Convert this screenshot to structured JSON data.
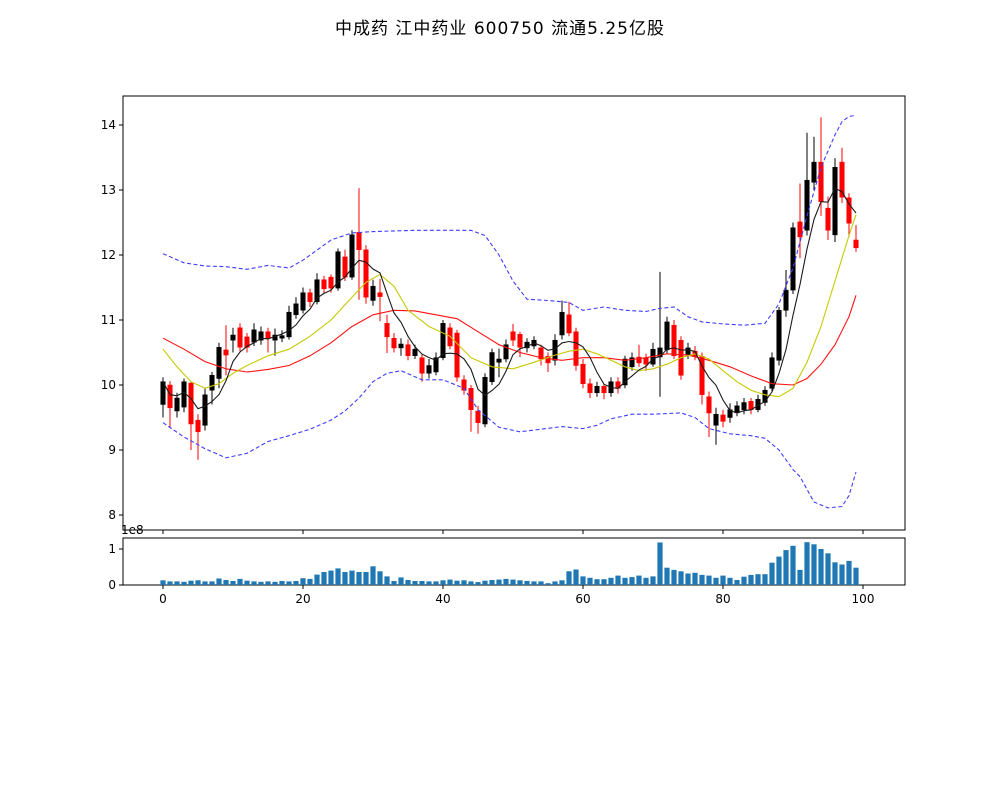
{
  "title": "中成药  江中药业  600750  流通5.25亿股",
  "chart_data": {
    "type": "candlestick",
    "title": "中成药  江中药业  600750  流通5.25亿股",
    "legend_position": "none",
    "grid": false,
    "x_axis": {
      "ticks": [
        0,
        20,
        40,
        60,
        80,
        100
      ]
    },
    "price_axis": {
      "ticks": [
        8,
        9,
        10,
        11,
        12,
        13,
        14
      ],
      "range": [
        7.77,
        14.45
      ]
    },
    "volume_axis": {
      "ticks": [
        0,
        1
      ],
      "range": [
        0,
        1.31
      ],
      "offset_label": "1e8"
    },
    "colors": {
      "up": "#000000",
      "down": "#ff0000",
      "ma_fast": "#1a1a1a",
      "ma_mid": "#c8c800",
      "ma_slow": "#ff1111",
      "band": "#3d3dff",
      "volume_bar": "#1f77b4",
      "axis": "#000000"
    },
    "ohlc": [
      [
        9.7,
        10.12,
        9.5,
        10.05
      ],
      [
        10.0,
        10.06,
        9.35,
        9.65
      ],
      [
        9.6,
        9.88,
        9.5,
        9.8
      ],
      [
        9.66,
        10.1,
        9.58,
        10.05
      ],
      [
        10.03,
        10.05,
        9.0,
        9.4
      ],
      [
        9.46,
        9.55,
        8.85,
        9.28
      ],
      [
        9.38,
        9.95,
        9.3,
        9.85
      ],
      [
        9.92,
        10.2,
        9.7,
        10.15
      ],
      [
        10.1,
        10.65,
        9.95,
        10.58
      ],
      [
        10.54,
        10.92,
        10.15,
        10.46
      ],
      [
        10.69,
        10.88,
        10.5,
        10.77
      ],
      [
        10.88,
        10.95,
        10.52,
        10.58
      ],
      [
        10.74,
        10.8,
        10.5,
        10.58
      ],
      [
        10.66,
        10.95,
        10.6,
        10.85
      ],
      [
        10.69,
        10.9,
        10.62,
        10.82
      ],
      [
        10.82,
        10.88,
        10.5,
        10.72
      ],
      [
        10.69,
        10.87,
        10.45,
        10.77
      ],
      [
        10.72,
        10.84,
        10.66,
        10.76
      ],
      [
        10.74,
        11.22,
        10.7,
        11.12
      ],
      [
        11.08,
        11.35,
        11.02,
        11.25
      ],
      [
        11.15,
        11.5,
        11.1,
        11.42
      ],
      [
        11.42,
        11.48,
        11.2,
        11.28
      ],
      [
        11.28,
        11.72,
        11.24,
        11.62
      ],
      [
        11.62,
        11.68,
        11.4,
        11.48
      ],
      [
        11.66,
        11.7,
        11.42,
        11.49
      ],
      [
        11.49,
        12.1,
        11.45,
        12.05
      ],
      [
        11.97,
        12.08,
        11.6,
        11.66
      ],
      [
        11.66,
        12.38,
        11.62,
        12.31
      ],
      [
        12.35,
        13.03,
        11.31,
        12.08
      ],
      [
        12.08,
        12.15,
        11.25,
        11.35
      ],
      [
        11.3,
        11.62,
        11.22,
        11.52
      ],
      [
        11.42,
        11.63,
        10.98,
        11.36
      ],
      [
        10.95,
        11.08,
        10.49,
        10.74
      ],
      [
        10.72,
        10.8,
        10.5,
        10.57
      ],
      [
        10.57,
        10.72,
        10.45,
        10.63
      ],
      [
        10.62,
        10.7,
        10.38,
        10.45
      ],
      [
        10.45,
        10.62,
        10.4,
        10.55
      ],
      [
        10.42,
        10.48,
        10.05,
        10.18
      ],
      [
        10.18,
        10.4,
        10.1,
        10.3
      ],
      [
        10.2,
        10.5,
        10.15,
        10.42
      ],
      [
        10.42,
        11.0,
        10.38,
        10.95
      ],
      [
        10.88,
        10.95,
        10.55,
        10.6
      ],
      [
        10.8,
        10.85,
        10.05,
        10.12
      ],
      [
        10.08,
        10.15,
        9.85,
        9.92
      ],
      [
        9.95,
        10.0,
        9.28,
        9.62
      ],
      [
        9.6,
        9.68,
        9.25,
        9.42
      ],
      [
        9.4,
        10.18,
        9.35,
        10.12
      ],
      [
        10.05,
        10.56,
        10.0,
        10.5
      ],
      [
        10.35,
        10.56,
        10.12,
        10.4
      ],
      [
        10.4,
        10.7,
        10.35,
        10.62
      ],
      [
        10.82,
        10.94,
        10.6,
        10.69
      ],
      [
        10.78,
        10.82,
        10.43,
        10.58
      ],
      [
        10.57,
        10.72,
        10.5,
        10.66
      ],
      [
        10.6,
        10.75,
        10.55,
        10.69
      ],
      [
        10.57,
        10.62,
        10.3,
        10.4
      ],
      [
        10.44,
        10.5,
        10.2,
        10.34
      ],
      [
        10.38,
        10.78,
        10.3,
        10.69
      ],
      [
        10.77,
        11.3,
        10.7,
        11.12
      ],
      [
        11.08,
        11.28,
        10.75,
        10.8
      ],
      [
        10.82,
        10.88,
        10.22,
        10.3
      ],
      [
        10.32,
        10.4,
        9.95,
        10.02
      ],
      [
        10.02,
        10.1,
        9.8,
        9.88
      ],
      [
        9.88,
        10.05,
        9.82,
        9.98
      ],
      [
        9.98,
        10.02,
        9.78,
        9.88
      ],
      [
        9.88,
        10.12,
        9.82,
        10.05
      ],
      [
        10.05,
        10.12,
        9.87,
        9.95
      ],
      [
        10.0,
        10.45,
        9.95,
        10.4
      ],
      [
        10.28,
        10.5,
        10.22,
        10.42
      ],
      [
        10.43,
        10.62,
        10.28,
        10.34
      ],
      [
        10.42,
        10.48,
        10.22,
        10.32
      ],
      [
        10.32,
        10.65,
        10.28,
        10.55
      ],
      [
        10.43,
        11.74,
        9.82,
        10.57
      ],
      [
        10.54,
        11.05,
        10.48,
        10.97
      ],
      [
        10.92,
        11.0,
        10.4,
        10.45
      ],
      [
        10.69,
        10.75,
        10.08,
        10.15
      ],
      [
        10.46,
        10.65,
        10.4,
        10.57
      ],
      [
        10.52,
        10.6,
        10.38,
        10.44
      ],
      [
        10.44,
        10.5,
        9.7,
        9.85
      ],
      [
        9.82,
        9.9,
        9.2,
        9.57
      ],
      [
        9.38,
        9.65,
        9.08,
        9.55
      ],
      [
        9.54,
        9.62,
        9.35,
        9.44
      ],
      [
        9.5,
        9.72,
        9.42,
        9.62
      ],
      [
        9.57,
        9.75,
        9.52,
        9.68
      ],
      [
        9.62,
        9.8,
        9.55,
        9.73
      ],
      [
        9.75,
        9.8,
        9.55,
        9.62
      ],
      [
        9.62,
        9.85,
        9.58,
        9.78
      ],
      [
        9.73,
        9.98,
        9.68,
        9.92
      ],
      [
        9.95,
        10.5,
        9.9,
        10.42
      ],
      [
        10.38,
        11.2,
        10.3,
        11.15
      ],
      [
        11.15,
        11.77,
        11.05,
        11.46
      ],
      [
        11.46,
        12.5,
        11.4,
        12.42
      ],
      [
        12.51,
        13.1,
        11.95,
        12.28
      ],
      [
        12.38,
        13.88,
        12.3,
        13.15
      ],
      [
        13.12,
        13.82,
        13.0,
        13.43
      ],
      [
        13.43,
        14.12,
        12.6,
        12.82
      ],
      [
        12.72,
        12.9,
        12.23,
        12.38
      ],
      [
        12.31,
        13.49,
        12.2,
        13.35
      ],
      [
        13.43,
        13.65,
        12.8,
        12.89
      ],
      [
        12.88,
        12.95,
        12.28,
        12.49
      ],
      [
        12.23,
        12.46,
        12.05,
        12.11
      ]
    ],
    "volume_1e8": [
      0.13,
      0.1,
      0.1,
      0.09,
      0.12,
      0.13,
      0.1,
      0.1,
      0.18,
      0.14,
      0.11,
      0.17,
      0.12,
      0.1,
      0.09,
      0.1,
      0.09,
      0.11,
      0.1,
      0.11,
      0.19,
      0.17,
      0.29,
      0.36,
      0.4,
      0.46,
      0.36,
      0.4,
      0.36,
      0.36,
      0.52,
      0.38,
      0.24,
      0.11,
      0.21,
      0.14,
      0.11,
      0.11,
      0.1,
      0.1,
      0.13,
      0.15,
      0.12,
      0.13,
      0.1,
      0.08,
      0.12,
      0.14,
      0.15,
      0.17,
      0.15,
      0.13,
      0.11,
      0.1,
      0.1,
      0.05,
      0.1,
      0.13,
      0.38,
      0.43,
      0.24,
      0.2,
      0.16,
      0.16,
      0.2,
      0.26,
      0.2,
      0.22,
      0.26,
      0.2,
      0.24,
      1.18,
      0.48,
      0.42,
      0.38,
      0.32,
      0.34,
      0.28,
      0.26,
      0.2,
      0.26,
      0.2,
      0.14,
      0.23,
      0.28,
      0.3,
      0.3,
      0.62,
      0.79,
      0.97,
      1.09,
      0.42,
      1.19,
      1.13,
      1.0,
      0.88,
      0.63,
      0.57,
      0.67,
      0.48
    ],
    "ma_fast": {
      "type": "sma_of_close",
      "window": 5
    },
    "ma_mid_points": [
      [
        0,
        10.55
      ],
      [
        2,
        10.28
      ],
      [
        4,
        10.05
      ],
      [
        6,
        9.95
      ],
      [
        8,
        10.02
      ],
      [
        10,
        10.18
      ],
      [
        12,
        10.3
      ],
      [
        15,
        10.45
      ],
      [
        18,
        10.55
      ],
      [
        21,
        10.75
      ],
      [
        24,
        11.0
      ],
      [
        27,
        11.35
      ],
      [
        29,
        11.58
      ],
      [
        31,
        11.7
      ],
      [
        33,
        11.52
      ],
      [
        35,
        11.15
      ],
      [
        38,
        10.9
      ],
      [
        41,
        10.75
      ],
      [
        44,
        10.42
      ],
      [
        47,
        10.28
      ],
      [
        50,
        10.25
      ],
      [
        53,
        10.35
      ],
      [
        56,
        10.46
      ],
      [
        58,
        10.52
      ],
      [
        60,
        10.55
      ],
      [
        62,
        10.48
      ],
      [
        64,
        10.38
      ],
      [
        66,
        10.28
      ],
      [
        68,
        10.22
      ],
      [
        70,
        10.25
      ],
      [
        72,
        10.32
      ],
      [
        74,
        10.42
      ],
      [
        76,
        10.48
      ],
      [
        78,
        10.4
      ],
      [
        80,
        10.22
      ],
      [
        82,
        10.05
      ],
      [
        84,
        9.92
      ],
      [
        86,
        9.85
      ],
      [
        88,
        9.82
      ],
      [
        90,
        9.95
      ],
      [
        92,
        10.35
      ],
      [
        94,
        10.9
      ],
      [
        96,
        11.6
      ],
      [
        98,
        12.3
      ],
      [
        99,
        12.62
      ]
    ],
    "ma_slow_points": [
      [
        0,
        10.72
      ],
      [
        3,
        10.55
      ],
      [
        6,
        10.36
      ],
      [
        9,
        10.25
      ],
      [
        12,
        10.2
      ],
      [
        15,
        10.24
      ],
      [
        18,
        10.3
      ],
      [
        21,
        10.45
      ],
      [
        24,
        10.65
      ],
      [
        27,
        10.9
      ],
      [
        30,
        11.08
      ],
      [
        33,
        11.15
      ],
      [
        36,
        11.14
      ],
      [
        39,
        11.08
      ],
      [
        42,
        11.02
      ],
      [
        45,
        10.82
      ],
      [
        48,
        10.62
      ],
      [
        51,
        10.5
      ],
      [
        54,
        10.42
      ],
      [
        57,
        10.38
      ],
      [
        60,
        10.42
      ],
      [
        63,
        10.42
      ],
      [
        66,
        10.38
      ],
      [
        69,
        10.42
      ],
      [
        72,
        10.48
      ],
      [
        75,
        10.46
      ],
      [
        78,
        10.38
      ],
      [
        81,
        10.28
      ],
      [
        84,
        10.14
      ],
      [
        87,
        10.02
      ],
      [
        90,
        10.0
      ],
      [
        92,
        10.1
      ],
      [
        94,
        10.32
      ],
      [
        96,
        10.62
      ],
      [
        98,
        11.05
      ],
      [
        99,
        11.38
      ]
    ],
    "band_upper_points": [
      [
        0,
        12.02
      ],
      [
        3,
        11.88
      ],
      [
        6,
        11.83
      ],
      [
        9,
        11.82
      ],
      [
        12,
        11.78
      ],
      [
        15,
        11.84
      ],
      [
        18,
        11.8
      ],
      [
        20,
        11.92
      ],
      [
        24,
        12.23
      ],
      [
        27,
        12.34
      ],
      [
        30,
        12.36
      ],
      [
        36,
        12.38
      ],
      [
        44,
        12.38
      ],
      [
        46,
        12.3
      ],
      [
        48,
        12.0
      ],
      [
        50,
        11.6
      ],
      [
        52,
        11.32
      ],
      [
        55,
        11.3
      ],
      [
        58,
        11.27
      ],
      [
        60,
        11.15
      ],
      [
        63,
        11.2
      ],
      [
        66,
        11.15
      ],
      [
        69,
        11.13
      ],
      [
        71,
        11.18
      ],
      [
        73,
        11.2
      ],
      [
        75,
        11.05
      ],
      [
        77,
        10.97
      ],
      [
        80,
        10.94
      ],
      [
        83,
        10.92
      ],
      [
        86,
        10.95
      ],
      [
        88,
        11.25
      ],
      [
        90,
        11.8
      ],
      [
        92,
        12.6
      ],
      [
        94,
        13.35
      ],
      [
        96,
        13.85
      ],
      [
        97,
        14.05
      ],
      [
        98,
        14.13
      ],
      [
        99,
        14.15
      ]
    ],
    "band_lower_points": [
      [
        0,
        9.42
      ],
      [
        3,
        9.2
      ],
      [
        6,
        9.02
      ],
      [
        9,
        8.88
      ],
      [
        12,
        8.95
      ],
      [
        15,
        9.13
      ],
      [
        18,
        9.22
      ],
      [
        21,
        9.32
      ],
      [
        24,
        9.46
      ],
      [
        26,
        9.6
      ],
      [
        28,
        9.8
      ],
      [
        30,
        10.05
      ],
      [
        32,
        10.18
      ],
      [
        34,
        10.22
      ],
      [
        37,
        10.08
      ],
      [
        40,
        10.08
      ],
      [
        43,
        9.95
      ],
      [
        45,
        9.62
      ],
      [
        48,
        9.35
      ],
      [
        51,
        9.28
      ],
      [
        54,
        9.32
      ],
      [
        57,
        9.36
      ],
      [
        60,
        9.33
      ],
      [
        62,
        9.38
      ],
      [
        64,
        9.48
      ],
      [
        67,
        9.55
      ],
      [
        70,
        9.55
      ],
      [
        74,
        9.57
      ],
      [
        76,
        9.5
      ],
      [
        78,
        9.33
      ],
      [
        81,
        9.25
      ],
      [
        84,
        9.22
      ],
      [
        86,
        9.18
      ],
      [
        88,
        9.0
      ],
      [
        90,
        8.7
      ],
      [
        91,
        8.59
      ],
      [
        93,
        8.2
      ],
      [
        95,
        8.11
      ],
      [
        97,
        8.13
      ],
      [
        98,
        8.3
      ],
      [
        99,
        8.66
      ]
    ]
  }
}
